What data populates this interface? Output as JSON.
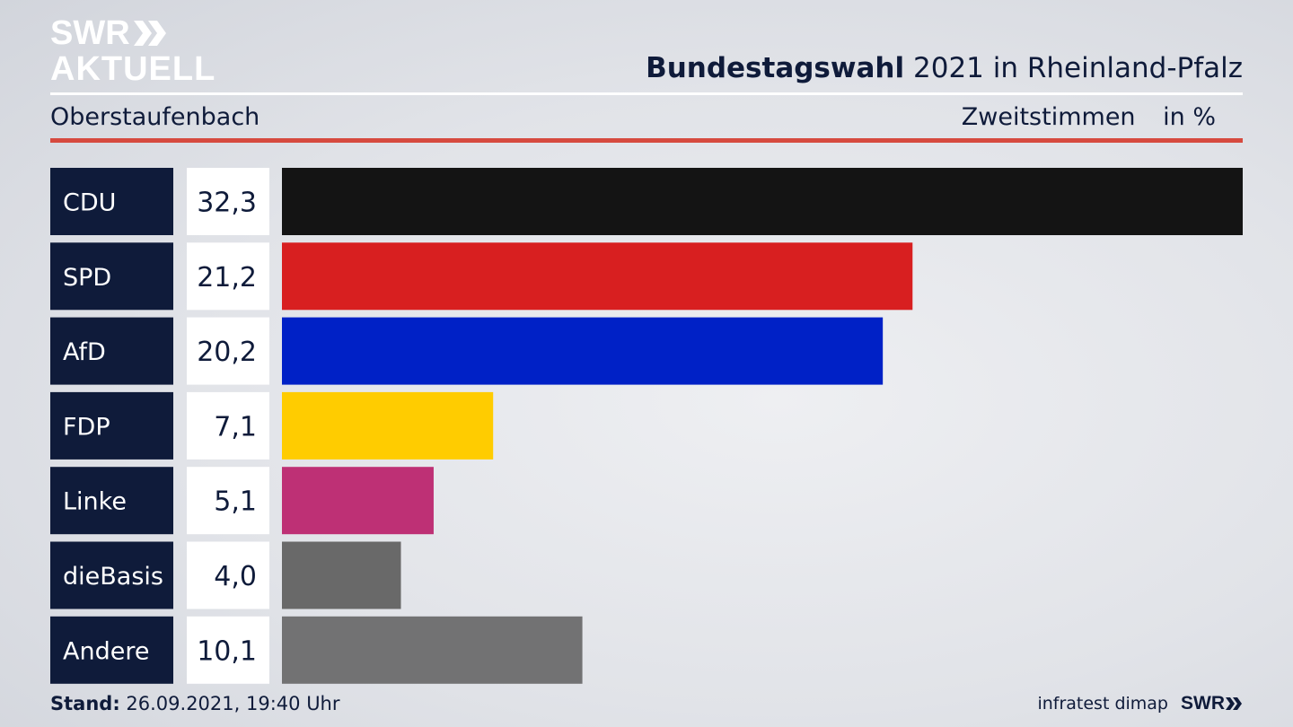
{
  "branding": {
    "logo_line1": "SWR",
    "logo_line2": "AKTUELL",
    "footer_logo": "SWR"
  },
  "header": {
    "title_bold": "Bundestagswahl",
    "title_rest": "2021 in Rheinland-Pfalz",
    "location": "Oberstaufenbach",
    "metric": "Zweitstimmen",
    "unit": "in %"
  },
  "footer": {
    "stand_label": "Stand:",
    "stand_value": "26.09.2021, 19:40 Uhr",
    "source": "infratest dimap"
  },
  "chart_data": {
    "type": "bar",
    "orientation": "horizontal",
    "categories": [
      "CDU",
      "SPD",
      "AfD",
      "FDP",
      "Linke",
      "dieBasis",
      "Andere"
    ],
    "values": [
      32.3,
      21.2,
      20.2,
      7.1,
      5.1,
      4.0,
      10.1
    ],
    "value_labels": [
      "32,3",
      "21,2",
      "20,2",
      "7,1",
      "5,1",
      "4,0",
      "10,1"
    ],
    "colors": [
      "#141414",
      "#d81f20",
      "#0021c6",
      "#ffcc00",
      "#be3075",
      "#696969",
      "#727273"
    ],
    "xlim": [
      0,
      32.3
    ],
    "label_box_color": "#0f1b3a",
    "value_box_color": "#ffffff"
  }
}
